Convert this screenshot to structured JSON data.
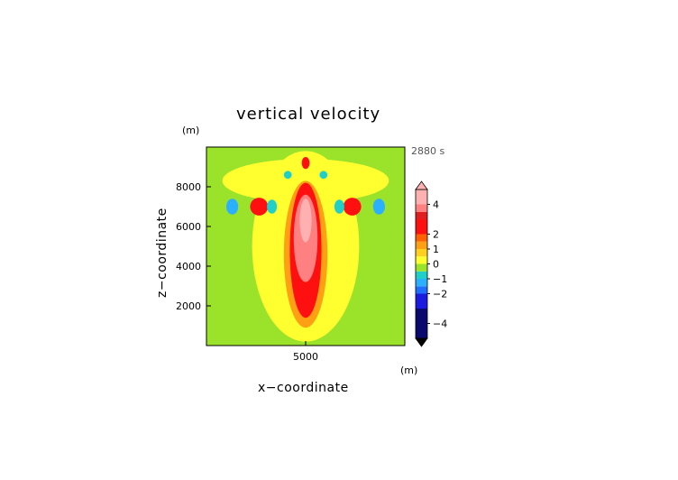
{
  "chart_data": {
    "type": "heatmap",
    "title": "vertical velocity",
    "xlabel": "x−coordinate",
    "ylabel": "z−coordinate",
    "x_unit": "(m)",
    "z_unit": "(m)",
    "time_label": "2880 s",
    "xlim": [
      0,
      10000
    ],
    "ylim": [
      0,
      10000
    ],
    "x_ticks": [
      {
        "value": 5000,
        "label": "5000"
      }
    ],
    "y_ticks": [
      {
        "value": 2000,
        "label": "2000"
      },
      {
        "value": 4000,
        "label": "4000"
      },
      {
        "value": 6000,
        "label": "6000"
      },
      {
        "value": 8000,
        "label": "8000"
      }
    ],
    "colorbar": {
      "range": [
        -5,
        5
      ],
      "ticks": [
        {
          "value": 4,
          "label": "4"
        },
        {
          "value": 2,
          "label": "2"
        },
        {
          "value": 1,
          "label": "1"
        },
        {
          "value": 0,
          "label": "0"
        },
        {
          "value": -1,
          "label": "−1"
        },
        {
          "value": -2,
          "label": "−2"
        },
        {
          "value": -4,
          "label": "−4"
        }
      ],
      "levels": [
        {
          "lo": -5.0,
          "hi": -3.0,
          "color": "#0a0a6e"
        },
        {
          "lo": -3.0,
          "hi": -2.0,
          "color": "#1a1ae0"
        },
        {
          "lo": -2.0,
          "hi": -1.5,
          "color": "#1f6fff"
        },
        {
          "lo": -1.5,
          "hi": -1.0,
          "color": "#2bb0ff"
        },
        {
          "lo": -1.0,
          "hi": -0.5,
          "color": "#20d0c8"
        },
        {
          "lo": -0.5,
          "hi": 0.0,
          "color": "#9be22a"
        },
        {
          "lo": 0.0,
          "hi": 0.5,
          "color": "#ffff30"
        },
        {
          "lo": 0.5,
          "hi": 1.0,
          "color": "#ffd020"
        },
        {
          "lo": 1.0,
          "hi": 1.5,
          "color": "#ffa014"
        },
        {
          "lo": 1.5,
          "hi": 2.0,
          "color": "#ff6000"
        },
        {
          "lo": 2.0,
          "hi": 3.0,
          "color": "#ff1010"
        },
        {
          "lo": 3.0,
          "hi": 3.5,
          "color": "#e02020"
        },
        {
          "lo": 3.5,
          "hi": 4.0,
          "color": "#ff8080"
        },
        {
          "lo": 4.0,
          "hi": 5.0,
          "color": "#ffb0b0"
        }
      ]
    },
    "regions": [
      {
        "label": "background",
        "value": -0.3
      },
      {
        "label": "broad-updraft-halo",
        "cx": 5000,
        "cz": 5000,
        "rx": 2700,
        "rz": 4800,
        "value": 0.3
      },
      {
        "label": "upper-anvil-halo",
        "cx": 5000,
        "cz": 8300,
        "rx": 4200,
        "rz": 1100,
        "value": 0.3
      },
      {
        "label": "core-outer",
        "cx": 5000,
        "cz": 4600,
        "rx": 1100,
        "rz": 3700,
        "value": 1.2
      },
      {
        "label": "core-mid",
        "cx": 5000,
        "cz": 4800,
        "rx": 800,
        "rz": 3400,
        "value": 2.5
      },
      {
        "label": "core-inner",
        "cx": 5000,
        "cz": 5400,
        "rx": 600,
        "rz": 2200,
        "value": 3.7
      },
      {
        "label": "core-peak",
        "cx": 5000,
        "cz": 6300,
        "rx": 300,
        "rz": 1100,
        "value": 4.5
      },
      {
        "label": "left-lobe-positive",
        "cx": 2650,
        "cz": 7000,
        "rx": 450,
        "rz": 450,
        "value": 2.5
      },
      {
        "label": "right-lobe-positive",
        "cx": 7350,
        "cz": 7000,
        "rx": 450,
        "rz": 450,
        "value": 2.5
      },
      {
        "label": "left-lobe-negative",
        "cx": 1300,
        "cz": 7000,
        "rx": 300,
        "rz": 400,
        "value": -1.2
      },
      {
        "label": "right-lobe-negative",
        "cx": 8700,
        "cz": 7000,
        "rx": 300,
        "rz": 400,
        "value": -1.2
      },
      {
        "label": "left-inner-negative",
        "cx": 3300,
        "cz": 7000,
        "rx": 250,
        "rz": 350,
        "value": -0.8
      },
      {
        "label": "right-inner-negative",
        "cx": 6700,
        "cz": 7000,
        "rx": 250,
        "rz": 350,
        "value": -0.8
      },
      {
        "label": "top-cap",
        "cx": 5000,
        "cz": 9200,
        "rx": 200,
        "rz": 300,
        "value": 2.5
      },
      {
        "label": "top-cap-negative-left",
        "cx": 4100,
        "cz": 8600,
        "rx": 200,
        "rz": 200,
        "value": -0.8
      },
      {
        "label": "top-cap-negative-right",
        "cx": 5900,
        "cz": 8600,
        "rx": 200,
        "rz": 200,
        "value": -0.8
      }
    ]
  }
}
